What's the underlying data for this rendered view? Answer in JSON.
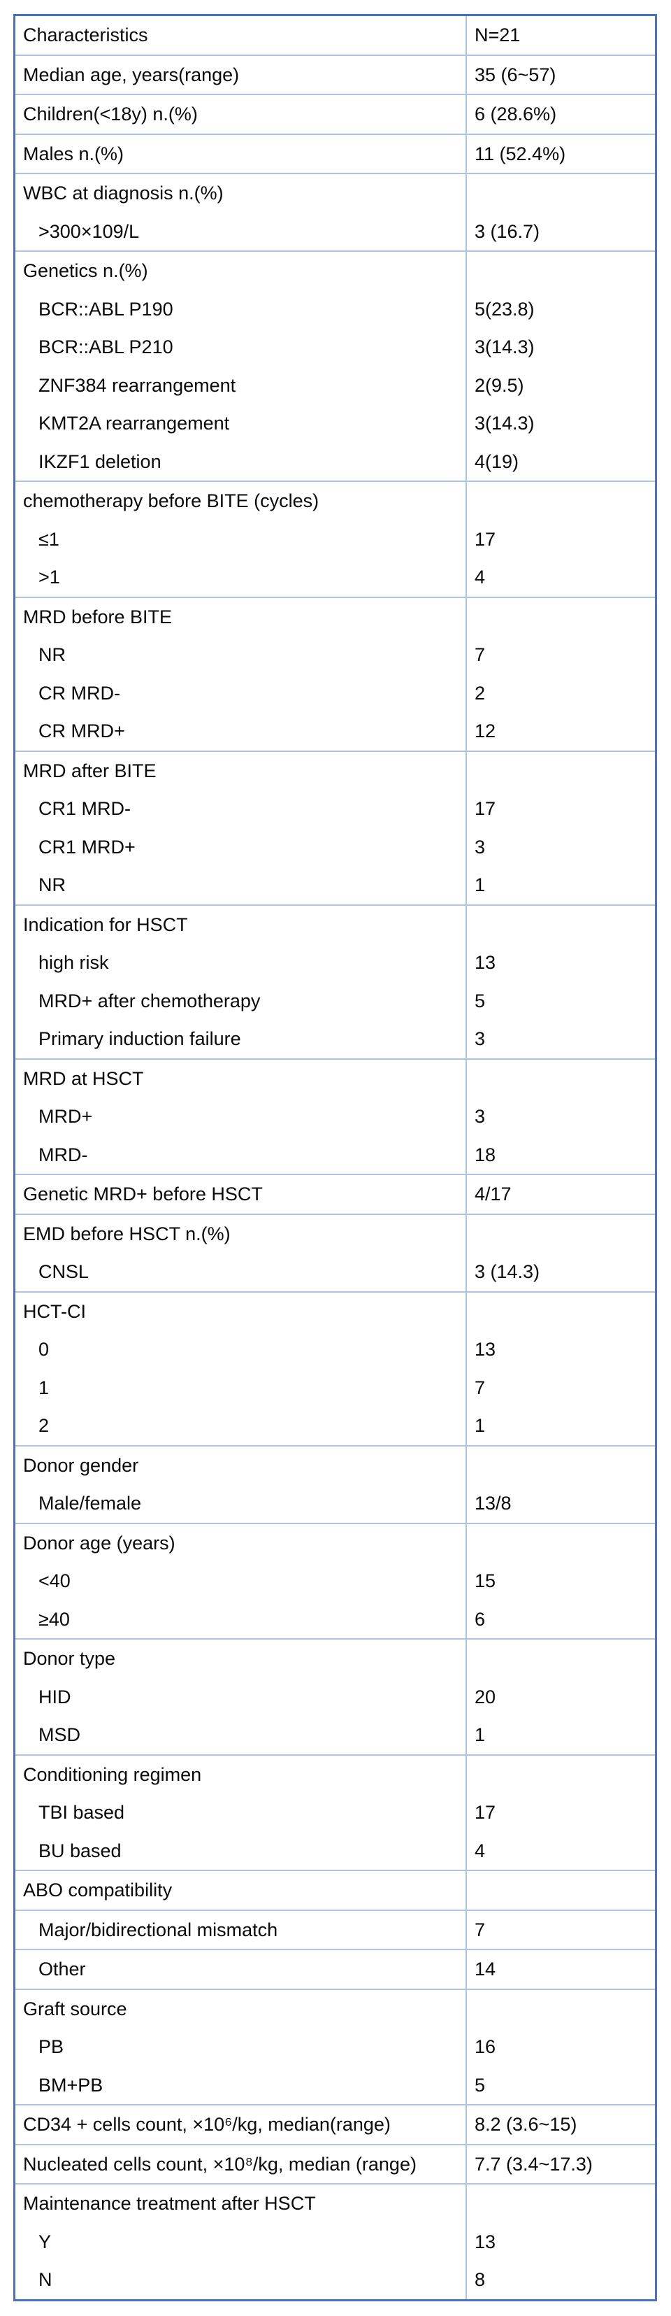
{
  "page": {
    "background": "#ffffff"
  },
  "table": {
    "colors": {
      "frame": "#4472c4",
      "grid": "#aec3e8",
      "text": "#0a0a0a"
    },
    "groups": [
      {
        "header_row": true,
        "rows": [
          {
            "label": "Characteristics",
            "value": "N=21"
          }
        ]
      },
      {
        "rows": [
          {
            "label": "Median age, years(range)",
            "value": "35 (6~57)"
          }
        ]
      },
      {
        "rows": [
          {
            "label": "Children(<18y) n.(%)",
            "value": "6 (28.6%)"
          }
        ]
      },
      {
        "rows": [
          {
            "label": "Males n.(%)",
            "value": "11 (52.4%)"
          }
        ]
      },
      {
        "rows": [
          {
            "label": "WBC at diagnosis n.(%)",
            "value": ""
          },
          {
            "label": ">300×109/L",
            "value": "3 (16.7)",
            "indent": true
          }
        ]
      },
      {
        "rows": [
          {
            "label": "Genetics n.(%)",
            "value": ""
          },
          {
            "label": "BCR::ABL P190",
            "value": "5(23.8)",
            "indent": true
          },
          {
            "label": "BCR::ABL P210",
            "value": "3(14.3)",
            "indent": true
          },
          {
            "label": "ZNF384 rearrangement",
            "value": "2(9.5)",
            "indent": true
          },
          {
            "label": "KMT2A rearrangement",
            "value": "3(14.3)",
            "indent": true
          },
          {
            "label": "IKZF1 deletion",
            "value": "4(19)",
            "indent": true
          }
        ]
      },
      {
        "rows": [
          {
            "label": "chemotherapy before BITE (cycles)",
            "value": ""
          },
          {
            "label": "≤1",
            "value": "17",
            "indent": true
          },
          {
            "label": ">1",
            "value": "4",
            "indent": true
          }
        ]
      },
      {
        "rows": [
          {
            "label": "MRD before BITE",
            "value": ""
          },
          {
            "label": "NR",
            "value": "7",
            "indent": true
          },
          {
            "label": "CR MRD-",
            "value": "2",
            "indent": true
          },
          {
            "label": "CR MRD+",
            "value": "12",
            "indent": true
          }
        ]
      },
      {
        "rows": [
          {
            "label": "MRD after BITE",
            "value": ""
          },
          {
            "label": "CR1 MRD-",
            "value": "17",
            "indent": true
          },
          {
            "label": "CR1 MRD+",
            "value": "3",
            "indent": true
          },
          {
            "label": "NR",
            "value": "1",
            "indent": true
          }
        ]
      },
      {
        "rows": [
          {
            "label": "Indication for HSCT",
            "value": ""
          },
          {
            "label": "high risk",
            "value": "13",
            "indent": true
          },
          {
            "label": "MRD+ after chemotherapy",
            "value": "5",
            "indent": true
          },
          {
            "label": "Primary induction failure",
            "value": "3",
            "indent": true
          }
        ]
      },
      {
        "rows": [
          {
            "label": "MRD at HSCT",
            "value": ""
          },
          {
            "label": "MRD+",
            "value": "3",
            "indent": true
          },
          {
            "label": "MRD-",
            "value": "18",
            "indent": true
          }
        ]
      },
      {
        "rows": [
          {
            "label": "Genetic MRD+ before HSCT",
            "value": "4/17"
          }
        ]
      },
      {
        "rows": [
          {
            "label": "EMD before HSCT n.(%)",
            "value": ""
          },
          {
            "label": "CNSL",
            "value": "3 (14.3)",
            "indent": true
          }
        ]
      },
      {
        "rows": [
          {
            "label": "HCT-CI",
            "value": ""
          },
          {
            "label": "0",
            "value": "13",
            "indent": true
          },
          {
            "label": "1",
            "value": "7",
            "indent": true
          },
          {
            "label": "2",
            "value": "1",
            "indent": true
          }
        ]
      },
      {
        "rows": [
          {
            "label": "Donor gender",
            "value": ""
          },
          {
            "label": "Male/female",
            "value": "13/8",
            "indent": true
          }
        ]
      },
      {
        "rows": [
          {
            "label": "Donor age (years)",
            "value": ""
          },
          {
            "label": "<40",
            "value": "15",
            "indent": true
          },
          {
            "label": "≥40",
            "value": "6",
            "indent": true
          }
        ]
      },
      {
        "rows": [
          {
            "label": "Donor type",
            "value": ""
          },
          {
            "label": "HID",
            "value": "20",
            "indent": true
          },
          {
            "label": "MSD",
            "value": "1",
            "indent": true
          }
        ]
      },
      {
        "rows": [
          {
            "label": "Conditioning regimen",
            "value": ""
          },
          {
            "label": "TBI based",
            "value": "17",
            "indent": true
          },
          {
            "label": "BU based",
            "value": "4",
            "indent": true
          }
        ]
      },
      {
        "rows": [
          {
            "label": "ABO compatibility",
            "value": ""
          }
        ]
      },
      {
        "rows": [
          {
            "label": "Major/bidirectional mismatch",
            "value": "7",
            "indent": true
          }
        ]
      },
      {
        "rows": [
          {
            "label": "Other",
            "value": "14",
            "indent": true
          }
        ]
      },
      {
        "rows": [
          {
            "label": "Graft source",
            "value": ""
          },
          {
            "label": "PB",
            "value": "16",
            "indent": true
          },
          {
            "label": "BM+PB",
            "value": "5",
            "indent": true
          }
        ]
      },
      {
        "rows": [
          {
            "label": "CD34 + cells count, ×10⁶/kg, median(range)",
            "value": "8.2 (3.6~15)"
          }
        ]
      },
      {
        "rows": [
          {
            "label": "Nucleated cells count, ×10⁸/kg, median (range)",
            "value": "7.7 (3.4~17.3)"
          }
        ]
      },
      {
        "rows": [
          {
            "label": "Maintenance treatment after HSCT",
            "value": ""
          },
          {
            "label": "Y",
            "value": "13",
            "indent": true
          },
          {
            "label": "N",
            "value": "8",
            "indent": true
          }
        ]
      }
    ]
  }
}
